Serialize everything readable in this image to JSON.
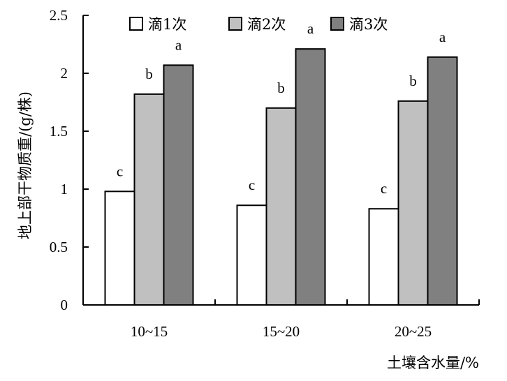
{
  "chart_data": {
    "type": "bar",
    "title": "",
    "xlabel": "土壤含水量/%",
    "ylabel": "地上部干物质重/(g/株)",
    "ylim": [
      0,
      2.5
    ],
    "yticks": [
      0,
      0.5,
      1,
      1.5,
      2,
      2.5
    ],
    "ytick_labels": [
      "0",
      "0.5",
      "1",
      "1.5",
      "2",
      "2.5"
    ],
    "categories": [
      "10~15",
      "15~20",
      "20~25"
    ],
    "series": [
      {
        "name": "滴1次",
        "values": [
          0.98,
          0.86,
          0.83
        ],
        "labels": [
          "c",
          "c",
          "c"
        ],
        "color": "#ffffff"
      },
      {
        "name": "滴2次",
        "values": [
          1.82,
          1.7,
          1.76
        ],
        "labels": [
          "b",
          "b",
          "b"
        ],
        "color": "#c0c0c0"
      },
      {
        "name": "滴3次",
        "values": [
          2.07,
          2.21,
          2.14
        ],
        "labels": [
          "a",
          "a",
          "a"
        ],
        "color": "#808080"
      }
    ],
    "legend": "top",
    "grid": false
  }
}
